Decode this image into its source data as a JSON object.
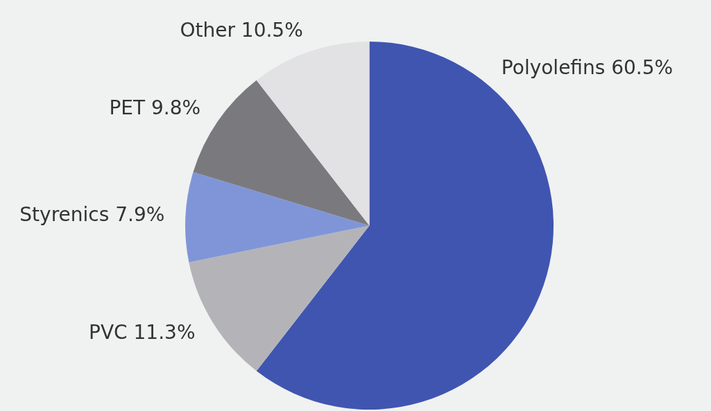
{
  "chart_data": {
    "type": "pie",
    "categories": [
      "Polyolefins",
      "PVC",
      "Styrenics",
      "PET",
      "Other"
    ],
    "values": [
      60.5,
      11.3,
      7.9,
      9.8,
      10.5
    ],
    "colors": [
      "#3f55b0",
      "#b4b4b8",
      "#8095d8",
      "#7a7a7e",
      "#e2e2e4"
    ],
    "value_labels": [
      "60.5%",
      "11.3%",
      "7.9%",
      "9.8%",
      "10.5%"
    ],
    "legend": false
  }
}
